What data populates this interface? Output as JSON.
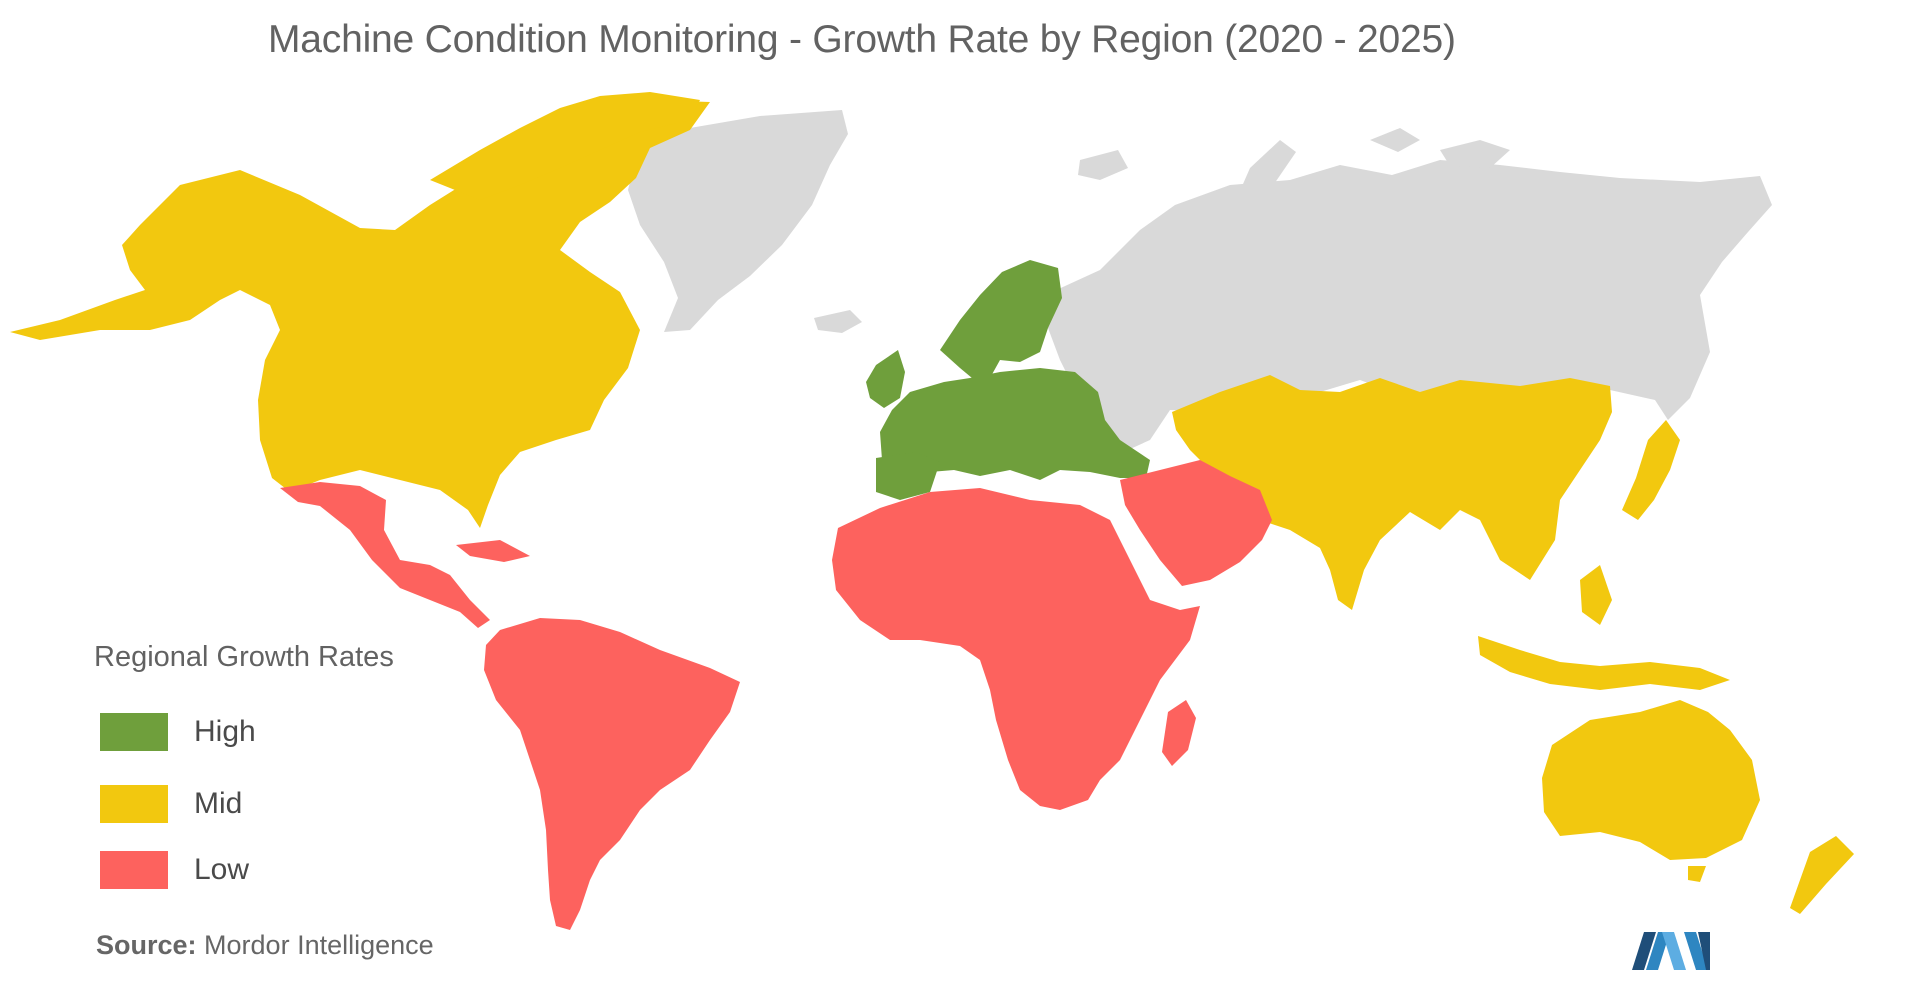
{
  "title": "Machine Condition Monitoring - Growth Rate by Region (2020 - 2025)",
  "legend": {
    "title": "Regional Growth Rates",
    "items": [
      {
        "label": "High",
        "color": "#6f9f3c"
      },
      {
        "label": "Mid",
        "color": "#f2c80f"
      },
      {
        "label": "Low",
        "color": "#fd625e"
      }
    ]
  },
  "no_data_color": "#d9d9d9",
  "regions": [
    {
      "name": "North America",
      "level": "Mid"
    },
    {
      "name": "Europe",
      "level": "High"
    },
    {
      "name": "Asia-Pacific",
      "level": "Mid"
    },
    {
      "name": "Latin America",
      "level": "Low"
    },
    {
      "name": "Middle East and Africa",
      "level": "Low"
    }
  ],
  "source": {
    "label": "Source:",
    "text": "Mordor Intelligence"
  },
  "logo_icon": "mordor-intelligence-logo-icon"
}
